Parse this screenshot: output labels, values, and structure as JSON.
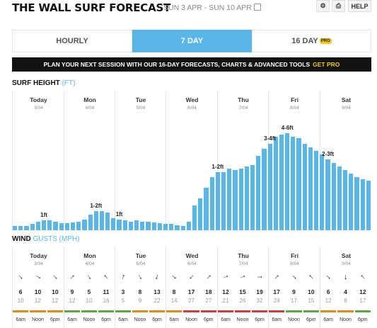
{
  "header": {
    "title": "THE WALL SURF FORECAST",
    "date_range": "SUN 3 APR - SUN 10 APR",
    "help_label": "HELP"
  },
  "tabs": [
    {
      "label": "HOURLY",
      "active": false
    },
    {
      "label": "7 DAY",
      "active": true
    },
    {
      "label": "16 DAY",
      "badge": "PRO",
      "active": false
    }
  ],
  "banner": {
    "text": "PLAN YOUR NEXT SESSION WITH OUR 16-DAY FORECASTS, CHARTS & ADVANCED TOOLS",
    "cta": "GET PRO"
  },
  "surf": {
    "title": "SURF HEIGHT",
    "unit": "(FT)"
  },
  "wind": {
    "title": "WIND",
    "unit": "GUSTS (MPH)"
  },
  "days": [
    {
      "name": "Today",
      "date": "3/04"
    },
    {
      "name": "Mon",
      "date": "4/04"
    },
    {
      "name": "Tue",
      "date": "5/04"
    },
    {
      "name": "Wed",
      "date": "6/04"
    },
    {
      "name": "Thu",
      "date": "7/04"
    },
    {
      "name": "Fri",
      "date": "8/04"
    },
    {
      "name": "Sat",
      "date": "9/04"
    }
  ],
  "chart_data": {
    "type": "bar",
    "title": "SURF HEIGHT",
    "ylabel": "FT",
    "day_labels": [
      "1ft",
      "1-2ft",
      "1ft",
      "1-2ft",
      "3-4ft",
      "4-6ft",
      "2-3ft"
    ],
    "values": [
      0.25,
      0.25,
      0.25,
      0.35,
      0.5,
      0.55,
      0.55,
      0.5,
      0.4,
      0.4,
      0.45,
      0.5,
      0.6,
      0.9,
      1.1,
      1.1,
      1.0,
      0.7,
      0.6,
      0.55,
      0.5,
      0.55,
      0.5,
      0.5,
      0.45,
      0.4,
      0.35,
      0.35,
      0.3,
      0.25,
      0.5,
      1.4,
      1.8,
      2.4,
      3.0,
      3.3,
      3.3,
      3.5,
      3.4,
      3.5,
      3.6,
      3.7,
      4.2,
      4.6,
      4.9,
      5.3,
      5.4,
      5.5,
      5.3,
      5.2,
      4.9,
      4.7,
      4.5,
      4.3,
      4.0,
      3.8,
      3.6,
      3.4,
      3.2,
      3.0,
      2.9,
      2.8
    ],
    "ylim": [
      0,
      6.5
    ]
  },
  "wind_data": {
    "slots": [
      {
        "dir": 315,
        "speed": "6",
        "gust": "10",
        "color": "#e08a1e"
      },
      {
        "dir": 300,
        "speed": "10",
        "gust": "12",
        "color": "#e08a1e"
      },
      {
        "dir": 315,
        "speed": "10",
        "gust": "12",
        "color": "#e08a1e"
      },
      {
        "dir": 225,
        "speed": "9",
        "gust": "12",
        "color": "#5aa845"
      },
      {
        "dir": 330,
        "speed": "5",
        "gust": "10",
        "color": "#5aa845"
      },
      {
        "dir": 135,
        "speed": "11",
        "gust": "16",
        "color": "#5aa845"
      },
      {
        "dir": 200,
        "speed": "3",
        "gust": "5",
        "color": "#5aa845"
      },
      {
        "dir": 330,
        "speed": "8",
        "gust": "9",
        "color": "#e08a1e"
      },
      {
        "dir": 20,
        "speed": "13",
        "gust": "22",
        "color": "#e08a1e"
      },
      {
        "dir": 310,
        "speed": "8",
        "gust": "14",
        "color": "#e08a1e"
      },
      {
        "dir": 45,
        "speed": "17",
        "gust": "27",
        "color": "#d13b3b"
      },
      {
        "dir": 225,
        "speed": "18",
        "gust": "27",
        "color": "#d13b3b"
      },
      {
        "dir": 250,
        "speed": "12",
        "gust": "21",
        "color": "#d13b3b"
      },
      {
        "dir": 250,
        "speed": "15",
        "gust": "26",
        "color": "#d13b3b"
      },
      {
        "dir": 270,
        "speed": "19",
        "gust": "32",
        "color": "#d13b3b"
      },
      {
        "dir": 225,
        "speed": "17",
        "gust": "24",
        "color": "#d13b3b"
      },
      {
        "dir": 315,
        "speed": "9",
        "gust": "17",
        "color": "#5aa845"
      },
      {
        "dir": 135,
        "speed": "10",
        "gust": "15",
        "color": "#5aa845"
      },
      {
        "dir": 315,
        "speed": "6",
        "gust": "12",
        "color": "#e08a1e"
      },
      {
        "dir": 0,
        "speed": "4",
        "gust": "8",
        "color": "#e08a1e"
      },
      {
        "dir": 135,
        "speed": "12",
        "gust": "17",
        "color": "#5aa845"
      }
    ],
    "times": [
      "6am",
      "Noon",
      "6pm"
    ]
  },
  "colors": {
    "accent": "#5bb6e8",
    "pro": "#f0c419"
  }
}
